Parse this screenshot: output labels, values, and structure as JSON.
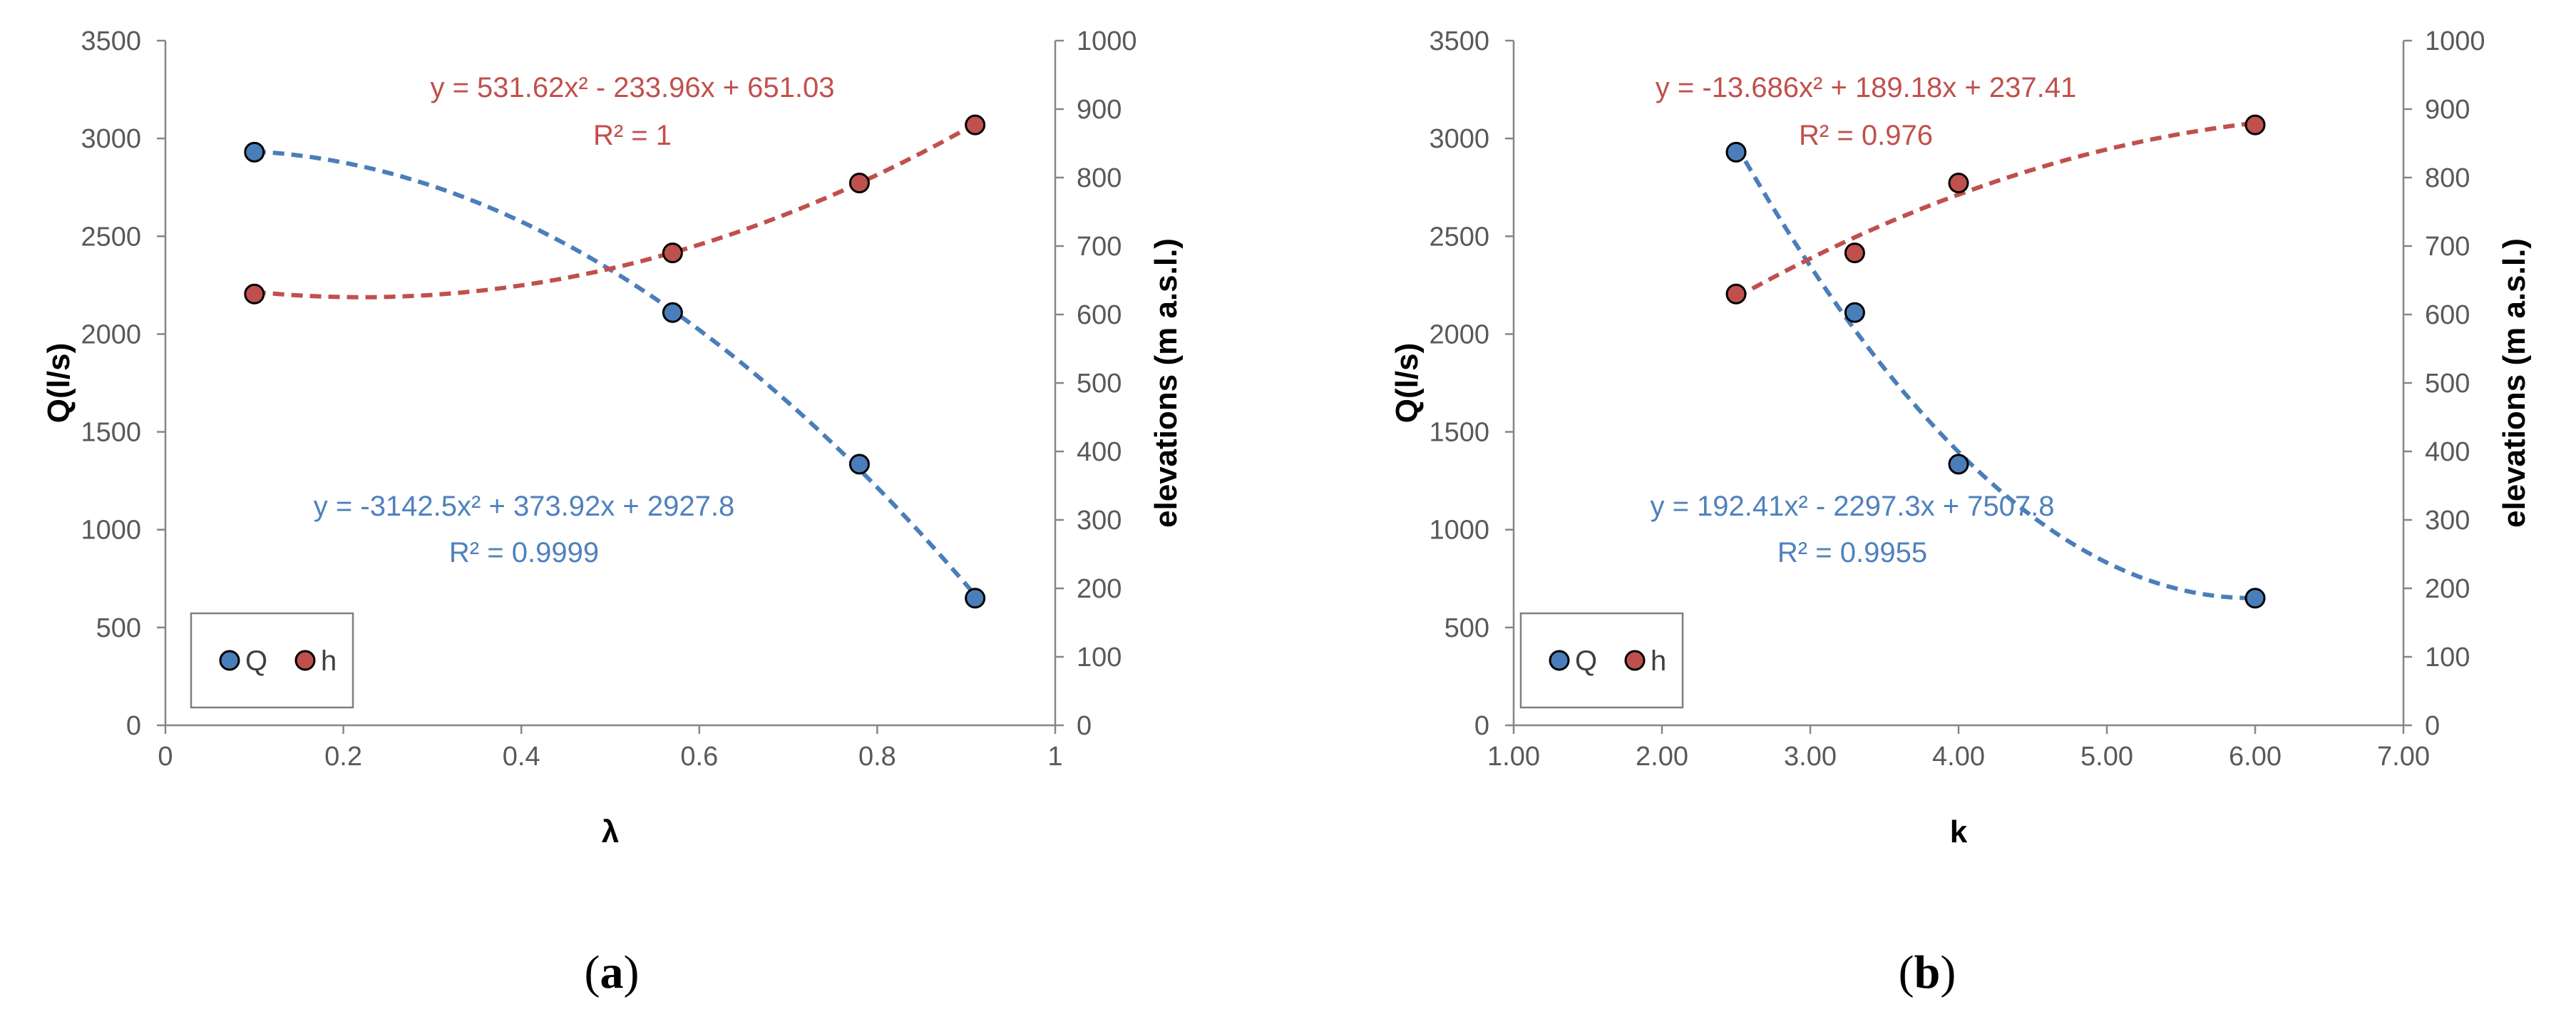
{
  "figure": {
    "colors": {
      "Q": "#4A7EBB",
      "h": "#C0504D",
      "Q_label": "#4F81BD",
      "h_label": "#C0504D",
      "marker_edge": "#000000"
    }
  },
  "chart_data": [
    {
      "type": "scatter",
      "panel_label": {
        "open": "(",
        "letter": "a",
        "close": ")"
      },
      "xlabel": "λ",
      "ylabel_left": "Q(l/s)",
      "ylabel_right": "elevations (m a.s.l.)",
      "xlim": [
        0,
        1
      ],
      "ylim_left": [
        0,
        3500
      ],
      "ylim_right": [
        0,
        1000
      ],
      "x_ticks": [
        0,
        0.2,
        0.4,
        0.6,
        0.8,
        1
      ],
      "x_tick_labels": [
        "0",
        "0.2",
        "0.4",
        "0.6",
        "0.8",
        "1"
      ],
      "y_left_ticks": [
        0,
        500,
        1000,
        1500,
        2000,
        2500,
        3000,
        3500
      ],
      "y_left_tick_labels": [
        "0",
        "500",
        "1000",
        "1500",
        "2000",
        "2500",
        "3000",
        "3500"
      ],
      "y_right_ticks": [
        0,
        100,
        200,
        300,
        400,
        500,
        600,
        700,
        800,
        900,
        1000
      ],
      "y_right_tick_labels": [
        "0",
        "100",
        "200",
        "300",
        "400",
        "500",
        "600",
        "700",
        "800",
        "900",
        "1000"
      ],
      "legend": {
        "placement": "bottom-left",
        "entries": [
          "Q",
          "h"
        ]
      },
      "series": [
        {
          "name": "Q",
          "axis": "left",
          "x": [
            0.1,
            0.57,
            0.78,
            0.91
          ],
          "y": [
            2930,
            2110,
            1335,
            650
          ],
          "trendline": {
            "coefficients": [
              -3142.5,
              373.92,
              2927.8
            ],
            "x_range": [
              0.1,
              0.91
            ],
            "equation": "y = -3142.5x² + 373.92x + 2927.8",
            "r2": "R² = 0.9999"
          }
        },
        {
          "name": "h",
          "axis": "right",
          "x": [
            0.1,
            0.57,
            0.78,
            0.91
          ],
          "y": [
            630,
            690,
            792,
            877
          ],
          "trendline": {
            "coefficients": [
              531.62,
              -233.96,
              651.03
            ],
            "x_range": [
              0.1,
              0.91
            ],
            "equation": "y = 531.62x² - 233.96x + 651.03",
            "r2": "R² = 1"
          }
        }
      ]
    },
    {
      "type": "scatter",
      "panel_label": {
        "open": "(",
        "letter": "b",
        "close": ")"
      },
      "xlabel": "k",
      "ylabel_left": "Q(l/s)",
      "ylabel_right": "elevations (m a.s.l.)",
      "xlim": [
        1,
        7
      ],
      "ylim_left": [
        0,
        3500
      ],
      "ylim_right": [
        0,
        1000
      ],
      "x_ticks": [
        1,
        2,
        3,
        4,
        5,
        6,
        7
      ],
      "x_tick_labels": [
        "1.00",
        "2.00",
        "3.00",
        "4.00",
        "5.00",
        "6.00",
        "7.00"
      ],
      "y_left_ticks": [
        0,
        500,
        1000,
        1500,
        2000,
        2500,
        3000,
        3500
      ],
      "y_left_tick_labels": [
        "0",
        "500",
        "1000",
        "1500",
        "2000",
        "2500",
        "3000",
        "3500"
      ],
      "y_right_ticks": [
        0,
        100,
        200,
        300,
        400,
        500,
        600,
        700,
        800,
        900,
        1000
      ],
      "y_right_tick_labels": [
        "0",
        "100",
        "200",
        "300",
        "400",
        "500",
        "600",
        "700",
        "800",
        "900",
        "1000"
      ],
      "legend": {
        "placement": "bottom-left",
        "entries": [
          "Q",
          "h"
        ]
      },
      "series": [
        {
          "name": "Q",
          "axis": "left",
          "x": [
            2.5,
            3.3,
            4.0,
            6.0
          ],
          "y": [
            2930,
            2110,
            1335,
            650
          ],
          "trendline": {
            "coefficients": [
              192.41,
              -2297.3,
              7507.8
            ],
            "x_range": [
              2.5,
              6.0
            ],
            "equation": "y = 192.41x² - 2297.3x + 7507.8",
            "r2": "R² = 0.9955"
          }
        },
        {
          "name": "h",
          "axis": "right",
          "x": [
            2.5,
            3.3,
            4.0,
            6.0
          ],
          "y": [
            630,
            690,
            792,
            877
          ],
          "trendline": {
            "coefficients": [
              -13.686,
              189.18,
              237.41
            ],
            "x_range": [
              2.5,
              6.0
            ],
            "equation": "y = -13.686x² + 189.18x + 237.41",
            "r2": "R² = 0.976"
          }
        }
      ]
    }
  ]
}
